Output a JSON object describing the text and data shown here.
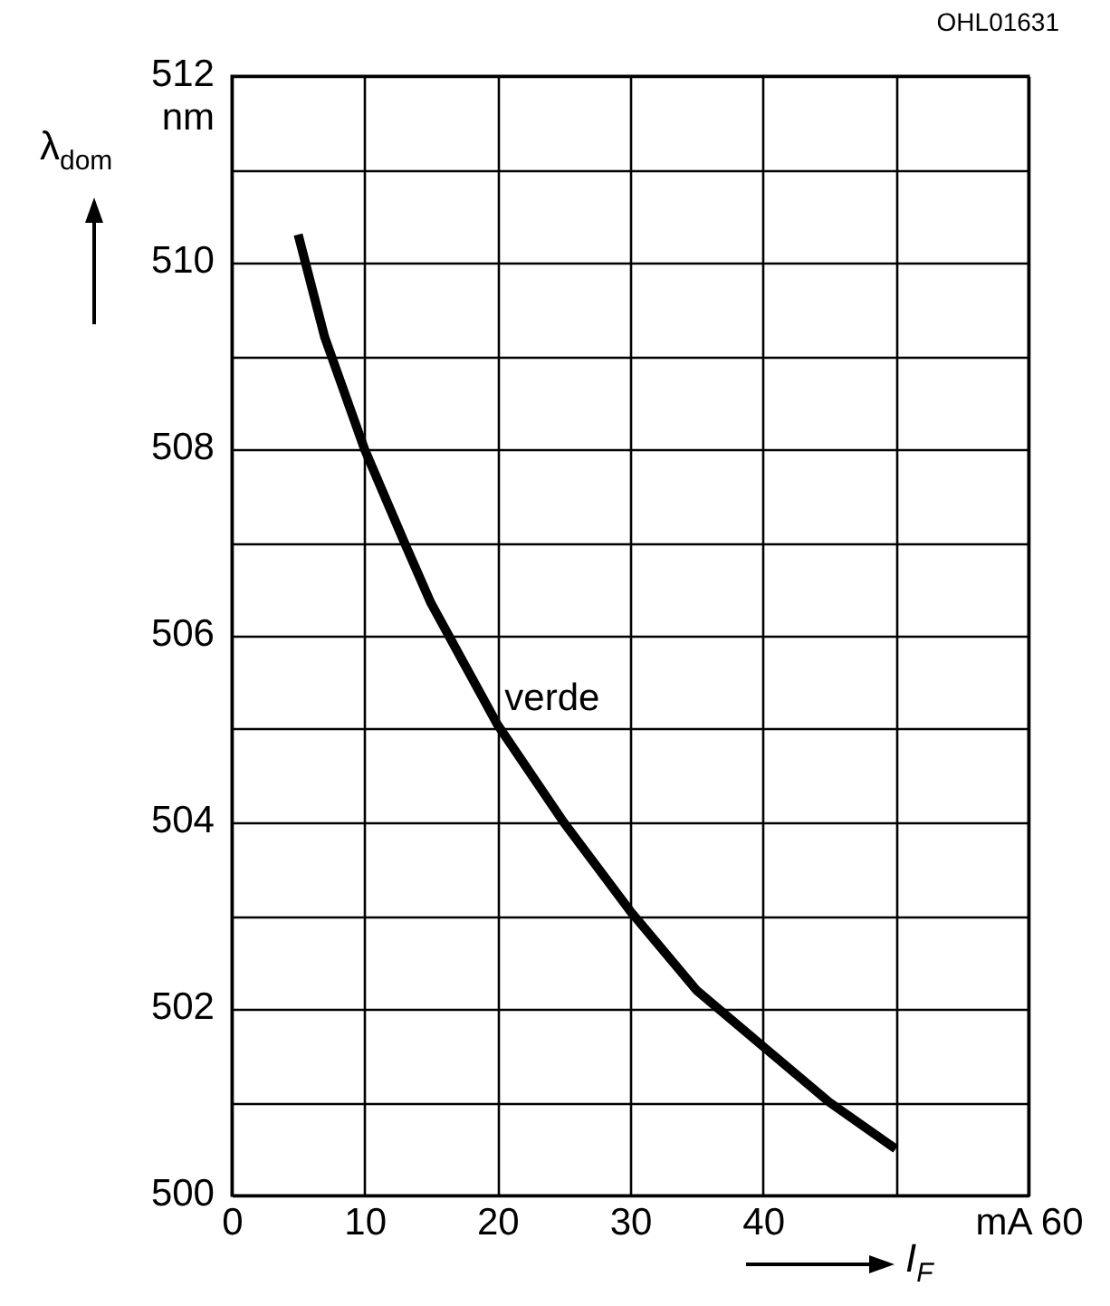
{
  "chart_data": {
    "type": "line",
    "xlabel": "I$_{F}$",
    "ylabel": "λ$_{dom}$",
    "annotations": [
      "OHL01631"
    ],
    "xlim": [
      0,
      60
    ],
    "ylim": [
      500,
      512
    ],
    "xticks": [
      0,
      10,
      20,
      30,
      40,
      {
        "value": 50,
        "label": null
      },
      {
        "value": 60,
        "label": "mA 60"
      }
    ],
    "yticks": [
      500,
      {
        "value": 501,
        "label": null
      },
      502,
      {
        "value": 503,
        "label": null
      },
      504,
      {
        "value": 505,
        "label": null
      },
      506,
      {
        "value": 507,
        "label": null
      },
      508,
      {
        "value": 509,
        "label": null
      },
      510,
      {
        "value": 511,
        "label": null
      },
      {
        "value": 512,
        "label": "512\nnm"
      }
    ],
    "grid": true,
    "legend": false,
    "series": [
      {
        "name": "verde",
        "color": "#000000",
        "x": [
          5,
          7,
          10,
          13,
          15,
          20,
          25,
          30,
          35,
          40,
          45,
          50
        ],
        "values": [
          510.3,
          509.2,
          508,
          507,
          506.35,
          505.05,
          504,
          503.05,
          502.2,
          501.6,
          501,
          500.5
        ]
      }
    ]
  }
}
